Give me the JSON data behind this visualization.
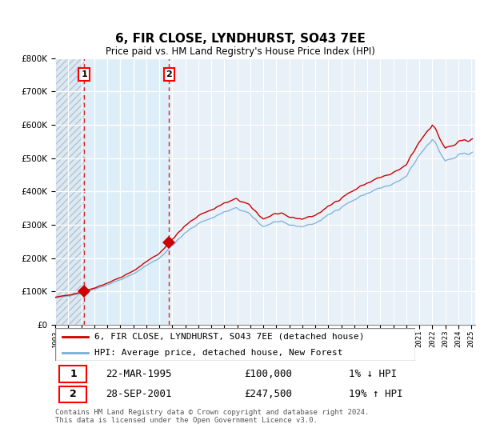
{
  "title": "6, FIR CLOSE, LYNDHURST, SO43 7EE",
  "subtitle": "Price paid vs. HM Land Registry's House Price Index (HPI)",
  "legend_line1": "6, FIR CLOSE, LYNDHURST, SO43 7EE (detached house)",
  "legend_line2": "HPI: Average price, detached house, New Forest",
  "sale1_date": "22-MAR-1995",
  "sale1_price": 100000,
  "sale1_label": "1% ↓ HPI",
  "sale2_date": "28-SEP-2001",
  "sale2_price": 247500,
  "sale2_label": "19% ↑ HPI",
  "sale1_x": 1995.22,
  "sale2_x": 2001.75,
  "footer": "Contains HM Land Registry data © Crown copyright and database right 2024.\nThis data is licensed under the Open Government Licence v3.0.",
  "hpi_color": "#7bafd4",
  "price_color": "#cc0000",
  "hatch_bg": "#dde8f0",
  "blue_bg": "#ddeef8",
  "chart_bg": "#e8f0f8",
  "ylim_min": 0,
  "ylim_max": 800000
}
